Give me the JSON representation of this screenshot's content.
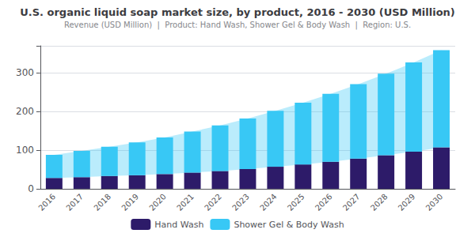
{
  "chart_data": {
    "type": "bar",
    "title": "U.S. organic liquid soap market size, by product, 2016 - 2030 (USD Million)",
    "subtitle": "Revenue (USD Million)  |  Product: Hand Wash, Shower Gel & Body Wash  |  Region: U.S.",
    "categories": [
      "2016",
      "2017",
      "2018",
      "2019",
      "2020",
      "2021",
      "2022",
      "2023",
      "2024",
      "2025",
      "2026",
      "2027",
      "2028",
      "2029",
      "2030"
    ],
    "series": [
      {
        "name": "Hand Wash",
        "color": "#2d1b69",
        "values": [
          28,
          30,
          33,
          35,
          38,
          42,
          46,
          51,
          57,
          63,
          70,
          78,
          87,
          96,
          107
        ]
      },
      {
        "name": "Shower Gel & Body Wash",
        "color": "#38c8f5",
        "values": [
          60,
          68,
          76,
          85,
          95,
          106,
          118,
          131,
          145,
          160,
          176,
          193,
          211,
          231,
          252
        ]
      }
    ],
    "stacked": true,
    "ylim": [
      0,
      370
    ],
    "yticks": [
      0,
      100,
      200,
      300
    ],
    "grid": true,
    "legend": "bottom"
  }
}
